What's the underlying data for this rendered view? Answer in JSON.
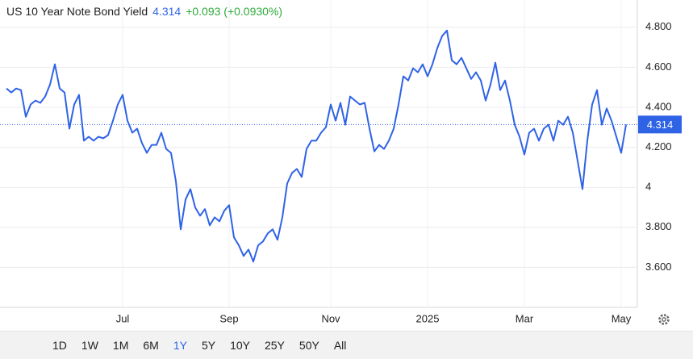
{
  "header": {
    "title": "US 10 Year Note Bond Yield",
    "price": 4.314,
    "change": "+0.093 (+0.0930%)"
  },
  "chart_data": {
    "type": "line",
    "color": "#2f63e6",
    "categories": [
      null,
      null,
      null,
      null,
      null,
      null,
      null,
      null,
      null,
      null,
      null,
      null,
      null,
      null,
      null,
      null,
      null,
      null,
      null,
      null,
      null,
      null,
      null,
      null,
      "Jul",
      null,
      null,
      null,
      null,
      null,
      null,
      null,
      null,
      null,
      null,
      null,
      null,
      null,
      null,
      null,
      null,
      null,
      null,
      null,
      null,
      null,
      "Sep",
      null,
      null,
      null,
      null,
      null,
      null,
      null,
      null,
      null,
      null,
      null,
      null,
      null,
      null,
      null,
      null,
      null,
      null,
      null,
      null,
      "Nov",
      null,
      null,
      null,
      null,
      null,
      null,
      null,
      null,
      null,
      null,
      null,
      null,
      null,
      null,
      null,
      null,
      null,
      null,
      null,
      "2025",
      null,
      null,
      null,
      null,
      null,
      null,
      null,
      null,
      null,
      null,
      null,
      null,
      null,
      null,
      null,
      null,
      null,
      null,
      null,
      "Mar",
      null,
      null,
      null,
      null,
      null,
      null,
      null,
      null,
      null,
      null,
      null,
      null,
      null,
      null,
      null,
      null,
      null,
      null,
      null,
      "May",
      null
    ],
    "values": [
      4.494,
      4.474,
      4.494,
      4.486,
      4.353,
      4.414,
      4.434,
      4.422,
      4.454,
      4.514,
      4.615,
      4.494,
      4.474,
      4.293,
      4.414,
      4.462,
      4.233,
      4.253,
      4.233,
      4.253,
      4.245,
      4.261,
      4.333,
      4.414,
      4.462,
      4.333,
      4.273,
      4.293,
      4.221,
      4.172,
      4.212,
      4.212,
      4.273,
      4.192,
      4.172,
      4.031,
      3.79,
      3.939,
      3.991,
      3.899,
      3.858,
      3.891,
      3.81,
      3.85,
      3.83,
      3.883,
      3.911,
      3.75,
      3.71,
      3.657,
      3.689,
      3.629,
      3.71,
      3.73,
      3.77,
      3.79,
      3.738,
      3.85,
      4.019,
      4.072,
      4.092,
      4.052,
      4.192,
      4.233,
      4.233,
      4.273,
      4.301,
      4.414,
      4.333,
      4.422,
      4.313,
      4.454,
      4.434,
      4.414,
      4.422,
      4.293,
      4.18,
      4.212,
      4.192,
      4.233,
      4.293,
      4.414,
      4.555,
      4.534,
      4.595,
      4.575,
      4.615,
      4.555,
      4.615,
      4.695,
      4.756,
      4.784,
      4.635,
      4.615,
      4.647,
      4.595,
      4.542,
      4.575,
      4.534,
      4.434,
      4.514,
      4.623,
      4.486,
      4.534,
      4.434,
      4.313,
      4.253,
      4.164,
      4.273,
      4.293,
      4.233,
      4.293,
      4.313,
      4.233,
      4.333,
      4.313,
      4.353,
      4.273,
      4.132,
      3.991,
      4.233,
      4.414,
      4.486,
      4.313,
      4.394,
      4.333,
      4.253,
      4.172,
      4.314
    ],
    "ylim": [
      3.4,
      4.9
    ],
    "yticks": [
      {
        "value": 3.6,
        "label": "3.600"
      },
      {
        "value": 3.8,
        "label": "3.800"
      },
      4,
      {
        "value": 4.2,
        "label": "4.200"
      },
      {
        "value": 4.4,
        "label": "4.400"
      },
      {
        "value": 4.6,
        "label": "4.600"
      },
      {
        "value": 4.8,
        "label": "4.800"
      }
    ],
    "grid": true
  },
  "ranges": [
    {
      "label": "1D"
    },
    {
      "label": "1W"
    },
    {
      "label": "1M"
    },
    {
      "label": "6M"
    },
    {
      "label": "1Y",
      "active": true
    },
    {
      "label": "5Y"
    },
    {
      "label": "10Y"
    },
    {
      "label": "25Y"
    },
    {
      "label": "50Y"
    },
    {
      "label": "All"
    }
  ]
}
